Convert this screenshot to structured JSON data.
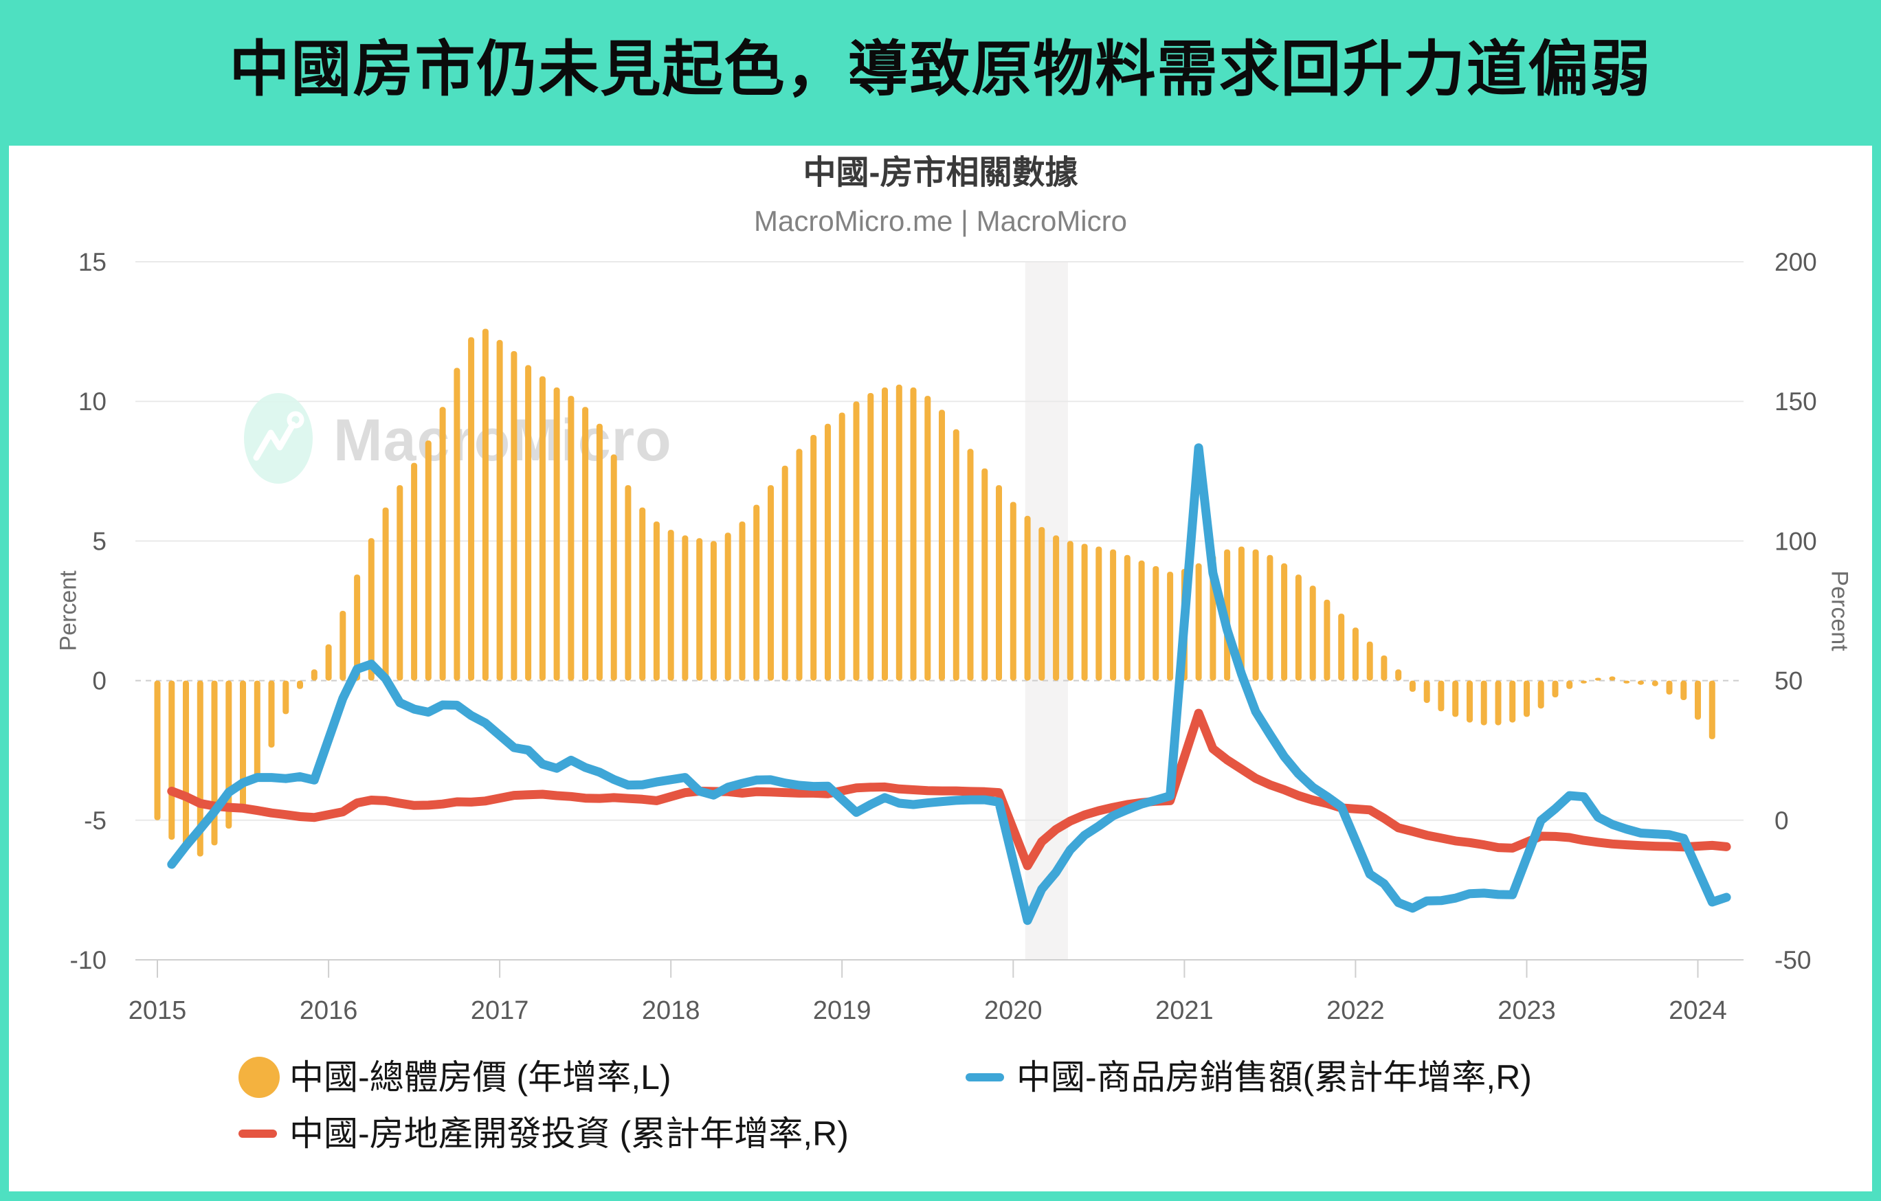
{
  "page": {
    "title": "中國房市仍未見起色，導致原物料需求回升力道偏弱"
  },
  "chart": {
    "title": "中國-房市相關數據",
    "subtitle": "MacroMicro.me | MacroMicro",
    "watermark": "MacroMicro",
    "left_axis_label": "Percent",
    "right_axis_label": "Percent",
    "legend": [
      {
        "label": "中國-總體房價 (年增率,L)",
        "color": "#F4B23F",
        "marker": "circle"
      },
      {
        "label": "中國-商品房銷售額(累計年增率,R)",
        "color": "#3EA6D7",
        "marker": "line"
      },
      {
        "label": "中國-房地產開發投資 (累計年增率,R)",
        "color": "#E55541",
        "marker": "line"
      }
    ]
  },
  "colors": {
    "background": "#4EE0C1",
    "card": "#FFFFFF",
    "grid": "#E9E9E9",
    "zero_line": "#CDCDCD",
    "axis_line": "#CFCFCF",
    "axis_text": "#5A5A5A",
    "band": "#F4F3F3",
    "watermark_circle": "#DCF7EE",
    "watermark_text": "#DADADA",
    "bar": "#F4B23F",
    "sales_line": "#3EA6D7",
    "investment_line": "#E55541"
  },
  "chart_data": {
    "type": "bar+line combo, dual y-axis, monthly 2015-2024",
    "title": "中國-房市相關數據",
    "x_axis": {
      "ticks": [
        2015,
        2016,
        2017,
        2018,
        2019,
        2020,
        2021,
        2022,
        2023,
        2024
      ]
    },
    "y_left": {
      "label": "Percent",
      "ticks": [
        15,
        10,
        5,
        0,
        -5,
        -10
      ],
      "range": [
        -10,
        15
      ]
    },
    "y_right": {
      "label": "Percent",
      "ticks": [
        200,
        150,
        100,
        50,
        0,
        -50
      ],
      "range": [
        -50,
        200
      ]
    },
    "recession_band": {
      "from": 2020.07,
      "to": 2020.32
    },
    "bars": {
      "name": "中國-總體房價 (年增率,L)",
      "axis": "left",
      "color": "#F4B23F",
      "start": 2015.0,
      "step_months": 1,
      "values": [
        -5.0,
        -5.7,
        -6.1,
        -6.3,
        -5.9,
        -5.3,
        -4.5,
        -3.6,
        -2.4,
        -1.2,
        -0.3,
        0.4,
        1.3,
        2.5,
        3.8,
        5.1,
        6.2,
        7.0,
        7.8,
        8.6,
        9.8,
        11.2,
        12.3,
        12.6,
        12.2,
        11.8,
        11.3,
        10.9,
        10.5,
        10.2,
        9.8,
        9.2,
        8.1,
        7.0,
        6.2,
        5.7,
        5.4,
        5.2,
        5.1,
        5.0,
        5.3,
        5.7,
        6.3,
        7.0,
        7.7,
        8.3,
        8.8,
        9.2,
        9.6,
        10.0,
        10.3,
        10.5,
        10.6,
        10.5,
        10.2,
        9.7,
        9.0,
        8.3,
        7.6,
        7.0,
        6.4,
        5.9,
        5.5,
        5.2,
        5.0,
        4.9,
        4.8,
        4.7,
        4.5,
        4.3,
        4.1,
        3.9,
        4.0,
        4.2,
        4.5,
        4.7,
        4.8,
        4.7,
        4.5,
        4.2,
        3.8,
        3.4,
        2.9,
        2.4,
        1.9,
        1.4,
        0.9,
        0.4,
        -0.4,
        -0.8,
        -1.1,
        -1.3,
        -1.5,
        -1.6,
        -1.6,
        -1.5,
        -1.3,
        -1.0,
        -0.6,
        -0.3,
        -0.1,
        0.1,
        0.15,
        -0.1,
        -0.15,
        -0.2,
        -0.5,
        -0.7,
        -1.4,
        -2.1
      ]
    },
    "series": [
      {
        "name": "中國-房地產開發投資 (累計年增率,R)",
        "axis": "right",
        "color": "#E55541",
        "first_month": "Feb",
        "points_by_year": {
          "2015": [
            10.4,
            8.5,
            6.0,
            5.1,
            4.6,
            4.3,
            3.5,
            2.6,
            2.0,
            1.3,
            1.0
          ],
          "2016": [
            3.0,
            6.2,
            7.2,
            7.0,
            6.1,
            5.3,
            5.4,
            5.8,
            6.6,
            6.5,
            6.9
          ],
          "2017": [
            8.9,
            9.1,
            9.3,
            8.8,
            8.5,
            7.9,
            7.8,
            8.1,
            7.8,
            7.5,
            7.0
          ],
          "2018": [
            9.9,
            10.4,
            10.3,
            10.2,
            9.7,
            10.2,
            10.1,
            9.9,
            9.7,
            9.7,
            9.5
          ],
          "2019": [
            11.6,
            11.8,
            11.9,
            11.2,
            10.9,
            10.6,
            10.5,
            10.5,
            10.3,
            10.2,
            9.9
          ],
          "2020": [
            -16.3,
            -7.7,
            -3.3,
            -0.3,
            1.9,
            3.4,
            4.6,
            5.6,
            6.3,
            6.8,
            7.0
          ],
          "2021": [
            38.3,
            25.6,
            21.6,
            18.3,
            15.0,
            12.7,
            10.9,
            8.8,
            7.2,
            6.0,
            4.4
          ],
          "2022": [
            3.7,
            0.7,
            -2.7,
            -4.0,
            -5.4,
            -6.4,
            -7.4,
            -8.0,
            -8.8,
            -9.8,
            -10.0
          ],
          "2023": [
            -5.7,
            -5.8,
            -6.2,
            -7.2,
            -7.9,
            -8.5,
            -8.8,
            -9.1,
            -9.3,
            -9.4,
            -9.6
          ],
          "2024": [
            -9.0,
            -9.5
          ]
        }
      },
      {
        "name": "中國-商品房銷售額(累計年增率,R)",
        "axis": "right",
        "color": "#3EA6D7",
        "first_month": "Feb",
        "points_by_year": {
          "2015": [
            -15.8,
            -9.2,
            -3.1,
            3.1,
            10.0,
            13.4,
            15.3,
            15.3,
            14.9,
            15.6,
            14.4
          ],
          "2016": [
            43.6,
            54.1,
            55.9,
            50.7,
            42.1,
            39.8,
            38.7,
            41.3,
            41.2,
            37.5,
            34.8
          ],
          "2017": [
            26.0,
            25.1,
            20.1,
            18.6,
            21.5,
            18.9,
            17.2,
            14.6,
            12.6,
            12.7,
            13.7
          ],
          "2018": [
            15.3,
            10.4,
            9.0,
            11.8,
            13.2,
            14.4,
            14.5,
            13.3,
            12.5,
            12.1,
            12.2
          ],
          "2019": [
            2.8,
            5.6,
            8.1,
            6.1,
            5.6,
            6.2,
            6.7,
            7.1,
            7.3,
            7.3,
            6.5
          ],
          "2020": [
            -35.9,
            -24.7,
            -18.6,
            -10.6,
            -5.4,
            -2.1,
            1.6,
            3.8,
            5.8,
            7.2,
            8.7
          ],
          "2021": [
            133.4,
            88.5,
            68.2,
            52.4,
            38.9,
            30.7,
            22.8,
            16.6,
            11.8,
            8.5,
            4.8
          ],
          "2022": [
            -19.3,
            -22.7,
            -29.5,
            -31.5,
            -28.9,
            -28.8,
            -27.9,
            -26.3,
            -26.1,
            -26.6,
            -26.7
          ],
          "2023": [
            -0.1,
            4.1,
            8.8,
            8.4,
            1.1,
            -1.5,
            -3.2,
            -4.6,
            -4.9,
            -5.2,
            -6.5
          ],
          "2024": [
            -29.3,
            -27.6
          ]
        }
      }
    ]
  }
}
